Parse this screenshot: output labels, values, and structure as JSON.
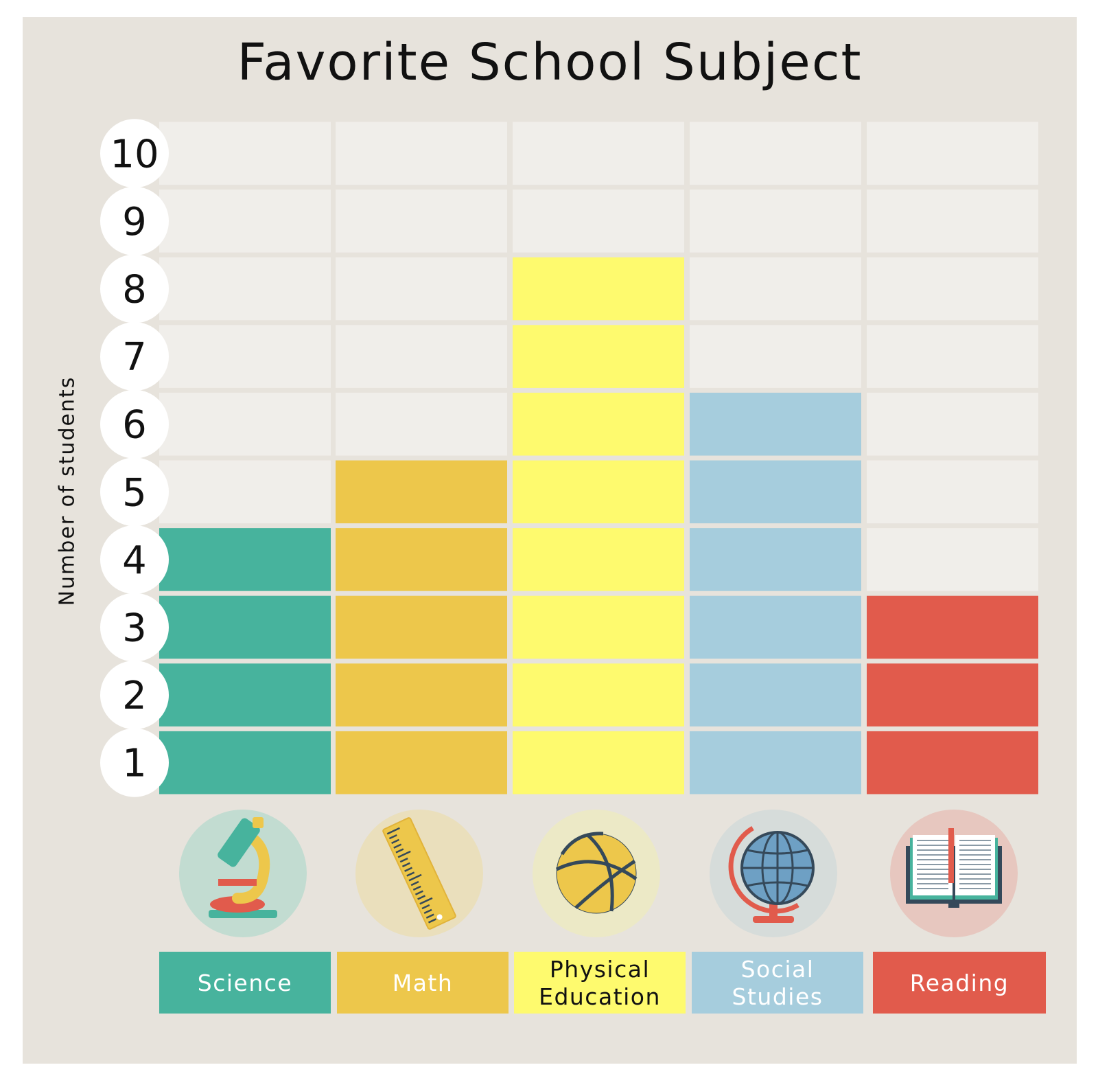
{
  "chart_data": {
    "type": "bar",
    "title": "Favorite School Subject",
    "ylabel": "Number of students",
    "ylim": [
      0,
      10
    ],
    "yticks": [
      "1",
      "2",
      "3",
      "4",
      "5",
      "6",
      "7",
      "8",
      "9",
      "10"
    ],
    "categories": [
      {
        "lines": [
          "Science"
        ],
        "value": 4,
        "color": "#47b39d",
        "icon_bg": "#c2dcd1",
        "label_color": "#ffffff",
        "icon": "microscope-icon"
      },
      {
        "lines": [
          "Math"
        ],
        "value": 5,
        "color": "#edc74b",
        "icon_bg": "#eadfbc",
        "label_color": "#ffffff",
        "icon": "ruler-icon"
      },
      {
        "lines": [
          "Physical",
          "Education"
        ],
        "value": 8,
        "color": "#fefa6e",
        "icon_bg": "#ece9c6",
        "label_color": "#111111",
        "icon": "basketball-icon"
      },
      {
        "lines": [
          "Social",
          "Studies"
        ],
        "value": 6,
        "color": "#a6cddd",
        "icon_bg": "#d6dcda",
        "label_color": "#ffffff",
        "icon": "globe-icon"
      },
      {
        "lines": [
          "Reading"
        ],
        "value": 3,
        "color": "#e15b4c",
        "icon_bg": "#e7c7bf",
        "label_color": "#ffffff",
        "icon": "open-book-icon"
      }
    ],
    "empty_cell_color": "#f0eeea",
    "grid": false,
    "legend": "none"
  }
}
